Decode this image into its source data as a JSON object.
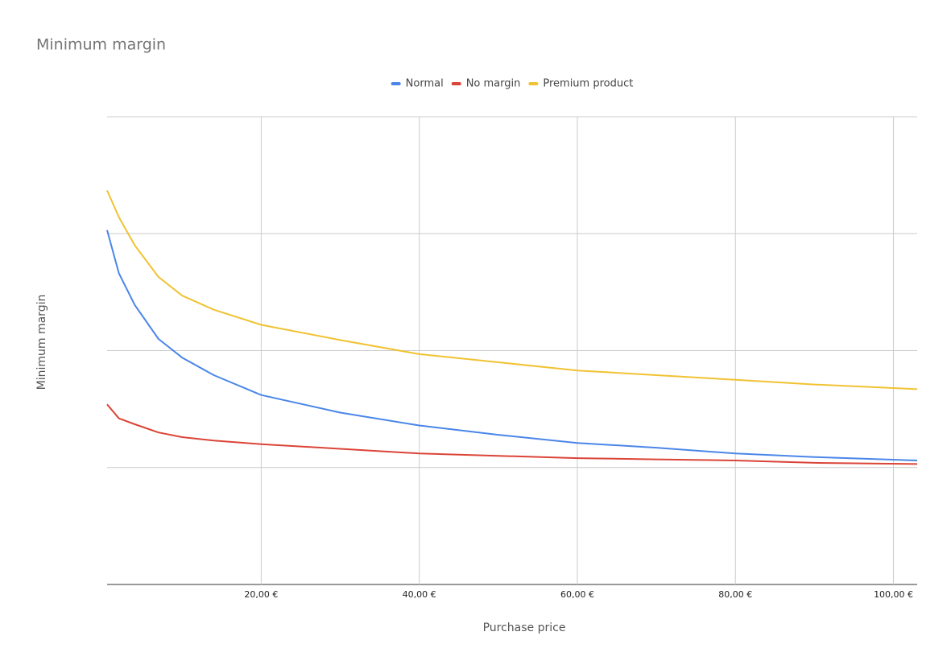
{
  "chart_data": {
    "type": "line",
    "title": "Minimum margin",
    "x_label": "Purchase price",
    "y_label": "Minimum margin",
    "x": [
      0.5,
      2,
      4,
      7,
      10,
      14,
      20,
      30,
      40,
      50,
      60,
      70,
      80,
      90,
      103
    ],
    "series": [
      {
        "name": "Normal",
        "color": "#4a86e8",
        "values": [
          3.03,
          2.66,
          2.39,
          2.1,
          1.94,
          1.79,
          1.62,
          1.47,
          1.36,
          1.28,
          1.21,
          1.17,
          1.12,
          1.09,
          1.06
        ]
      },
      {
        "name": "No margin",
        "color": "#db4437",
        "values": [
          1.54,
          1.42,
          1.37,
          1.3,
          1.26,
          1.23,
          1.2,
          1.16,
          1.12,
          1.1,
          1.08,
          1.07,
          1.06,
          1.04,
          1.03
        ]
      },
      {
        "name": "Premium product",
        "color": "#f1c232",
        "values": [
          3.37,
          3.14,
          2.9,
          2.63,
          2.47,
          2.35,
          2.22,
          2.09,
          1.97,
          1.9,
          1.83,
          1.79,
          1.75,
          1.71,
          1.67
        ]
      }
    ],
    "xlim": [
      0.5,
      103
    ],
    "xticks": [
      {
        "value": 20,
        "label": "20,00 €"
      },
      {
        "value": 40,
        "label": "40,00 €"
      },
      {
        "value": 60,
        "label": "60,00 €"
      },
      {
        "value": 80,
        "label": "80,00 €"
      },
      {
        "value": 100,
        "label": "100,00 €"
      }
    ],
    "ylim": [
      0,
      4
    ],
    "yticks": [
      0,
      1,
      2,
      3,
      4
    ],
    "ytick_labels": false,
    "grid": true,
    "legend": "top"
  }
}
